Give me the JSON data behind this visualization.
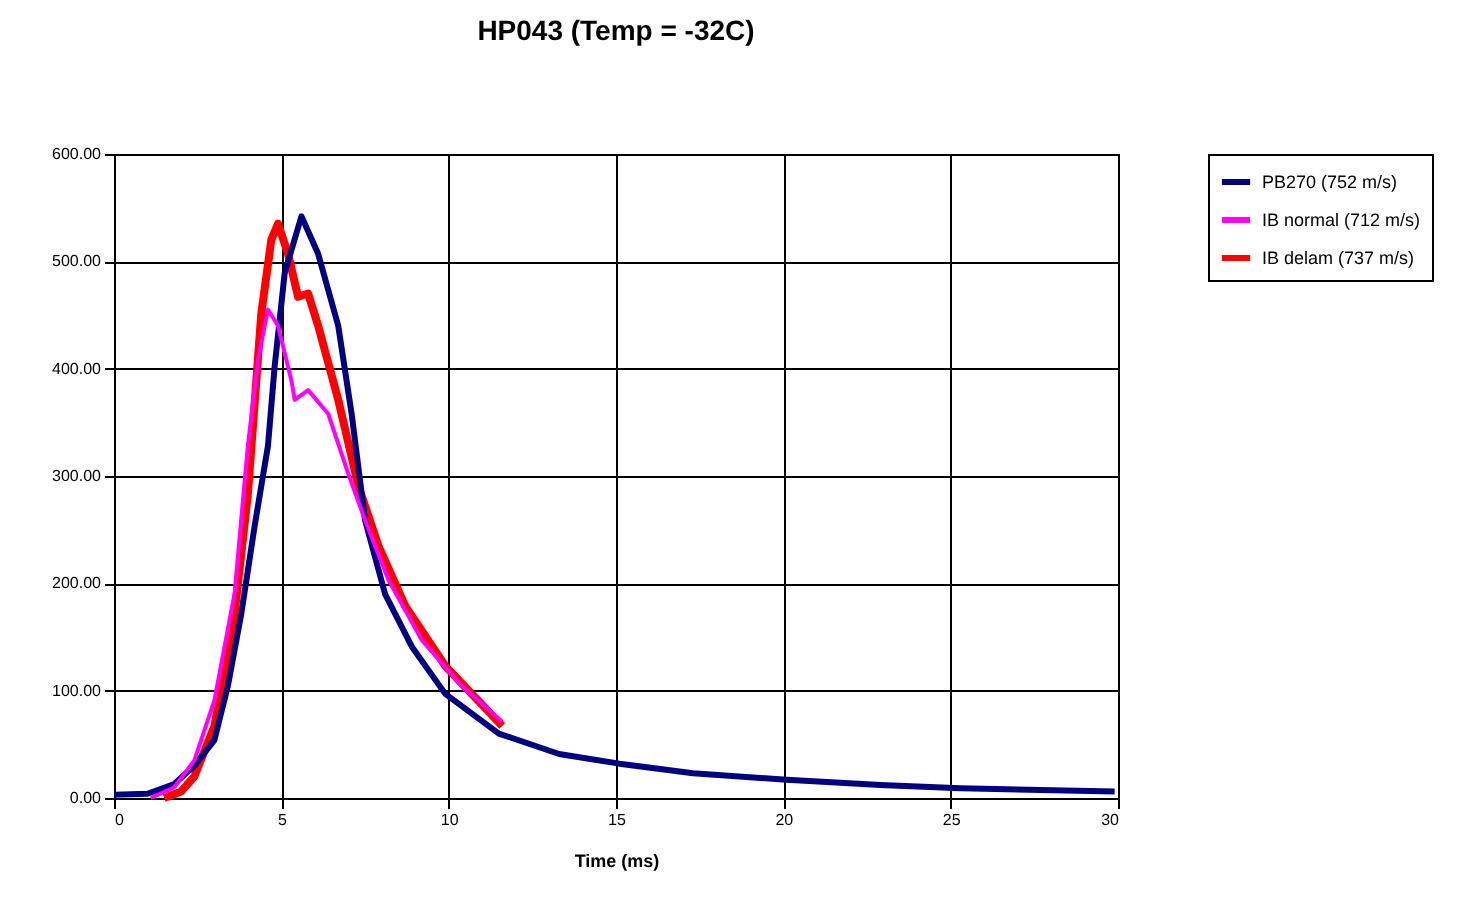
{
  "chart_data": {
    "type": "line",
    "title": "HP043 (Temp = -32C)",
    "xlabel": "Time (ms)",
    "xlim": [
      0,
      30
    ],
    "xticks": [
      0,
      5,
      10,
      15,
      20,
      25,
      30
    ],
    "ylim": [
      0,
      600
    ],
    "yticks": [
      {
        "value": 0,
        "label": "0.00"
      },
      {
        "value": 100,
        "label": "100.00"
      },
      {
        "value": 200,
        "label": "200.00"
      },
      {
        "value": 300,
        "label": "300.00"
      },
      {
        "value": 400,
        "label": "400.00"
      },
      {
        "value": 500,
        "label": "500.00"
      },
      {
        "value": 600,
        "label": "600.00"
      }
    ],
    "grid": true,
    "legend": "right",
    "marker": "none",
    "line_style": "solid",
    "series": [
      {
        "name": "PB270 (752 m/s)",
        "color": "#000080",
        "x": [
          0,
          1.0,
          1.8,
          2.4,
          3.0,
          3.4,
          3.8,
          4.2,
          4.6,
          4.8,
          5.1,
          5.6,
          6.1,
          6.7,
          7.1,
          7.5,
          8.1,
          8.9,
          9.9,
          11.5,
          13.3,
          15.1,
          17.3,
          20.1,
          22.9,
          25.3,
          29.9
        ],
        "values": [
          3,
          4,
          13,
          30,
          54,
          104,
          171,
          253,
          328,
          402,
          489,
          542,
          507,
          440,
          358,
          259,
          190,
          141,
          97,
          60,
          41,
          32,
          23,
          17,
          12,
          9,
          6
        ]
      },
      {
        "name": "IB normal (712 m/s)",
        "color": "#ff00ff",
        "x": [
          1.1,
          1.8,
          2.4,
          3.0,
          3.6,
          4.0,
          4.3,
          4.6,
          4.9,
          5.3,
          5.4,
          5.8,
          6.4,
          7.0,
          7.5,
          8.2,
          9.2,
          10.4,
          11.6
        ],
        "values": [
          0,
          10,
          35,
          91,
          190,
          328,
          408,
          455,
          440,
          389,
          371,
          380,
          358,
          302,
          259,
          203,
          147,
          104,
          71
        ]
      },
      {
        "name": "IB delam (737 m/s)",
        "color": "#ff0000",
        "x": [
          1.5,
          2.0,
          2.4,
          3.0,
          3.6,
          4.0,
          4.4,
          4.7,
          4.9,
          5.2,
          5.5,
          5.8,
          6.1,
          6.7,
          7.3,
          7.9,
          8.7,
          9.9,
          11.6
        ],
        "values": [
          0,
          6,
          20,
          67,
          171,
          283,
          451,
          520,
          535,
          507,
          467,
          470,
          440,
          371,
          291,
          235,
          179,
          123,
          67
        ]
      }
    ]
  }
}
